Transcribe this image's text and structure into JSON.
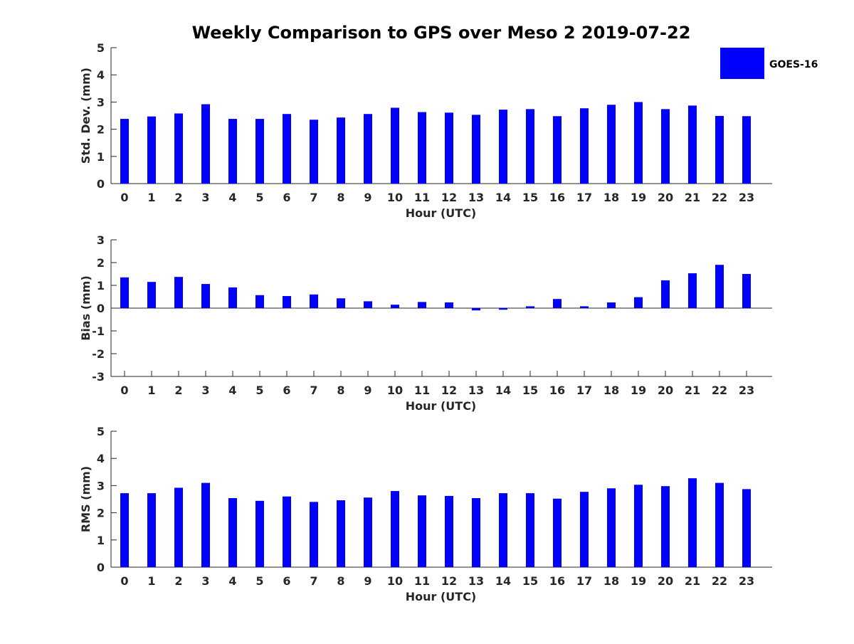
{
  "chart_data": {
    "title": "Weekly Comparison to GPS over Meso 2 2019-07-22",
    "legend": {
      "label": "GOES-16",
      "color": "#0000ff",
      "position": "top-right"
    },
    "categories": [
      "0",
      "1",
      "2",
      "3",
      "4",
      "5",
      "6",
      "7",
      "8",
      "9",
      "10",
      "11",
      "12",
      "13",
      "14",
      "15",
      "16",
      "17",
      "18",
      "19",
      "20",
      "21",
      "22",
      "23"
    ],
    "panels": [
      {
        "type": "bar",
        "xlabel": "Hour (UTC)",
        "ylabel": "Std. Dev. (mm)",
        "ylim": [
          0,
          5
        ],
        "yticks": [
          "0",
          "1",
          "2",
          "3",
          "4",
          "5"
        ],
        "series": [
          {
            "name": "GOES-16",
            "values": [
              2.38,
              2.47,
              2.58,
              2.92,
              2.38,
              2.38,
              2.56,
              2.35,
              2.43,
              2.56,
              2.79,
              2.63,
              2.61,
              2.53,
              2.72,
              2.74,
              2.48,
              2.77,
              2.9,
              3.0,
              2.74,
              2.87,
              2.49,
              2.48
            ]
          }
        ]
      },
      {
        "type": "bar",
        "xlabel": "Hour (UTC)",
        "ylabel": "Bias (mm)",
        "ylim": [
          -3,
          3
        ],
        "yticks": [
          "-3",
          "-2",
          "-1",
          "0",
          "1",
          "2",
          "3"
        ],
        "series": [
          {
            "name": "GOES-16",
            "values": [
              1.35,
              1.15,
              1.37,
              1.06,
              0.91,
              0.57,
              0.53,
              0.6,
              0.43,
              0.3,
              0.15,
              0.27,
              0.25,
              -0.1,
              -0.07,
              0.08,
              0.4,
              0.08,
              0.25,
              0.48,
              1.22,
              1.53,
              1.9,
              1.5
            ]
          }
        ]
      },
      {
        "type": "bar",
        "xlabel": "Hour (UTC)",
        "ylabel": "RMS (mm)",
        "ylim": [
          0,
          5
        ],
        "yticks": [
          "0",
          "1",
          "2",
          "3",
          "4",
          "5"
        ],
        "series": [
          {
            "name": "GOES-16",
            "values": [
              2.72,
              2.72,
              2.92,
              3.1,
              2.54,
              2.44,
              2.6,
              2.4,
              2.46,
              2.56,
              2.8,
              2.64,
              2.62,
              2.54,
              2.72,
              2.72,
              2.52,
              2.77,
              2.9,
              3.03,
              2.98,
              3.27,
              3.1,
              2.87
            ]
          }
        ]
      }
    ]
  }
}
